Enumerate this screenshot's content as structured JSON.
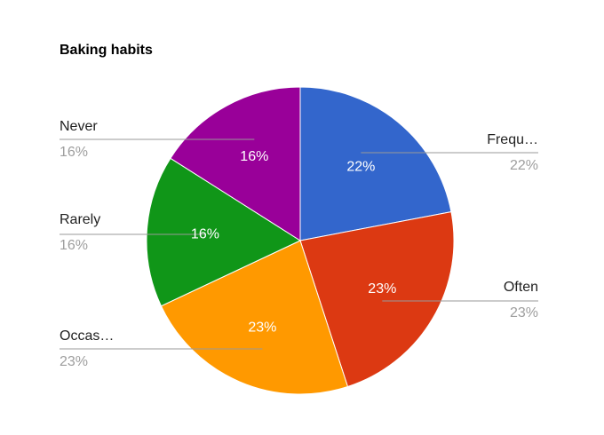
{
  "chart_data": {
    "type": "pie",
    "title": "Baking habits",
    "categories": [
      "Frequ…",
      "Often",
      "Occas…",
      "Rarely",
      "Never"
    ],
    "values": [
      22,
      23,
      23,
      16,
      16
    ],
    "value_labels": [
      "22%",
      "23%",
      "23%",
      "16%",
      "16%"
    ],
    "colors": [
      "#3366cc",
      "#dc3912",
      "#ff9900",
      "#109618",
      "#990099"
    ]
  }
}
